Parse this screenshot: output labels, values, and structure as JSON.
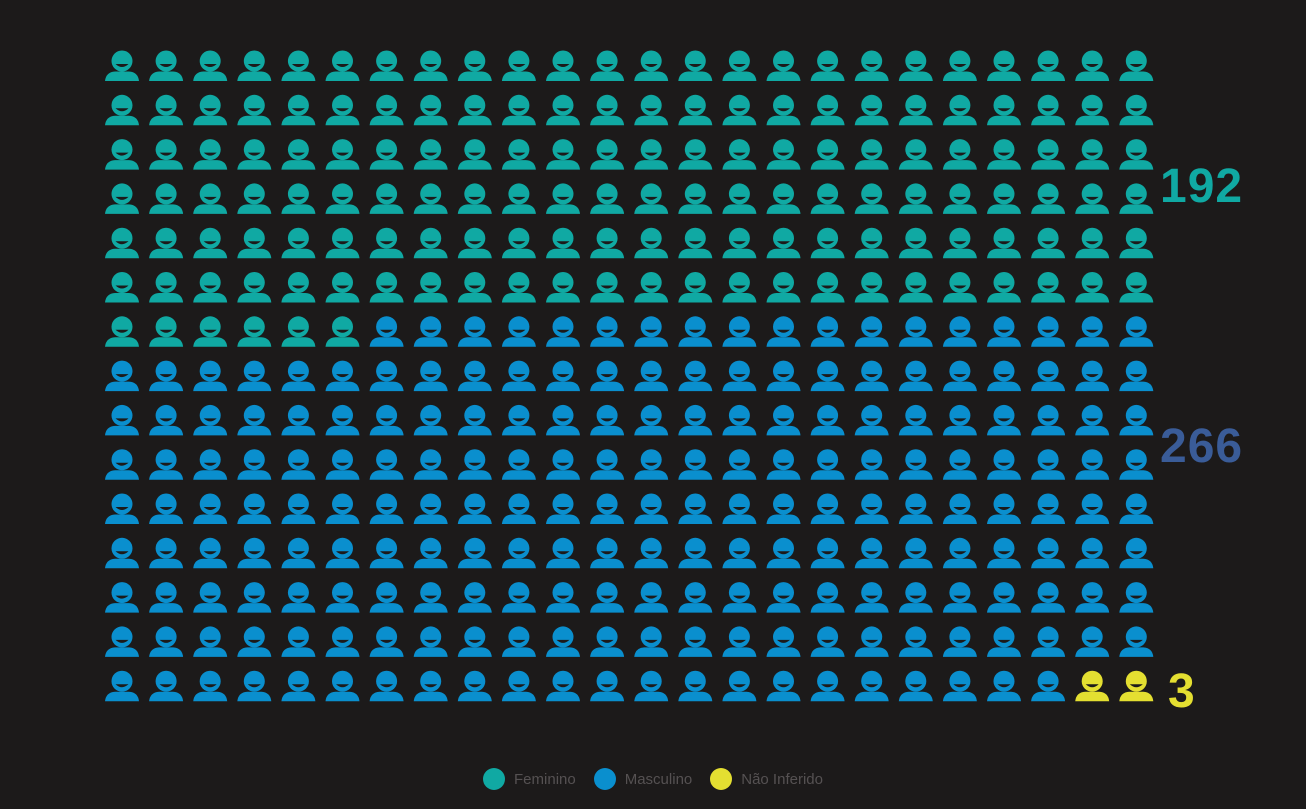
{
  "chart_data": {
    "type": "waffle",
    "unit": "person-icon",
    "columns": 24,
    "rows": 15,
    "series": [
      {
        "name": "Feminino",
        "value": 150,
        "label": "192",
        "color": "#10a9a3"
      },
      {
        "name": "Masculino",
        "value": 208,
        "label": "266",
        "color": "#0a8fce"
      },
      {
        "name": "Não Inferido",
        "value": 2,
        "label": "3",
        "color": "#e4df31"
      }
    ],
    "count_label_colors": [
      "#10a9a3",
      "#3a5c98",
      "#e4df31"
    ],
    "legend_position": "bottom-center"
  },
  "legend": {
    "items": [
      {
        "label": "Feminino",
        "color": "#10a9a3"
      },
      {
        "label": "Masculino",
        "color": "#0a8fce"
      },
      {
        "label": "Não Inferido",
        "color": "#e4df31"
      }
    ]
  }
}
